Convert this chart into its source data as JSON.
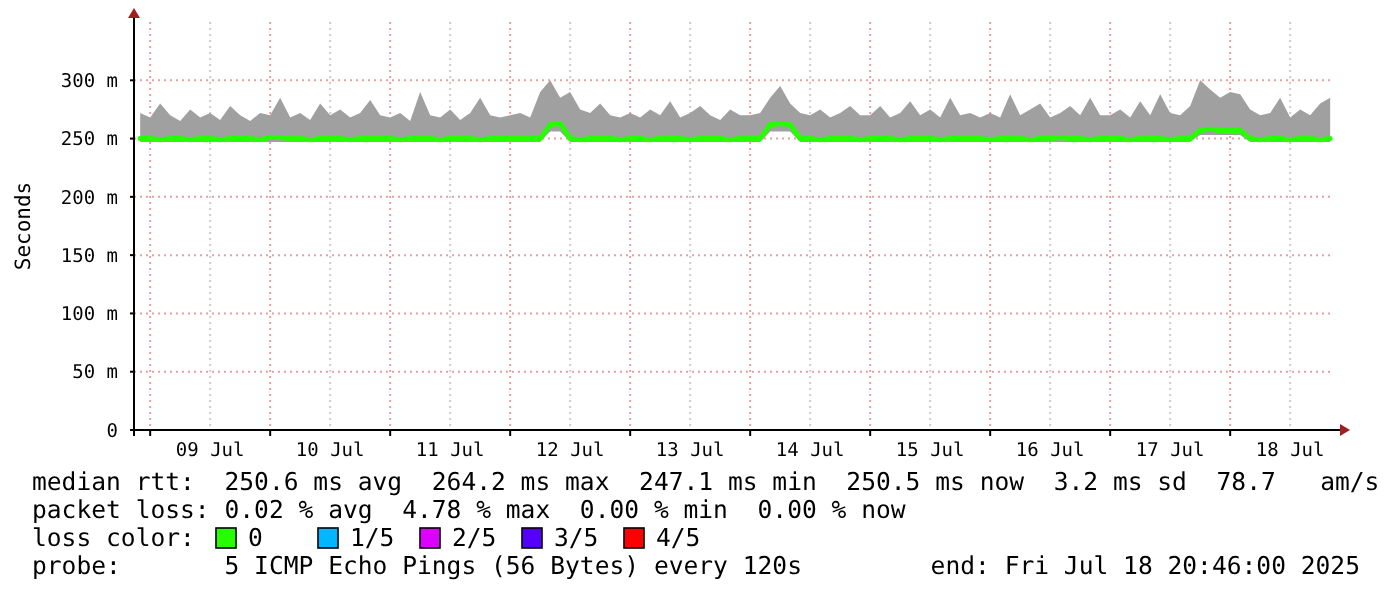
{
  "chart_data": {
    "type": "line",
    "ylabel": "Seconds",
    "legend_title": "loss color:",
    "legend": "bottom",
    "grid": true,
    "marker": "none",
    "line_style": "solid",
    "xlim": [
      "2025-07-08T20:46",
      "2025-07-18T20:46"
    ],
    "xticks": [
      {
        "value": "2025-07-09T00:00",
        "label": null
      },
      {
        "value": "2025-07-09T12:00",
        "label": "09 Jul"
      },
      {
        "value": "2025-07-10T00:00",
        "label": null
      },
      {
        "value": "2025-07-10T12:00",
        "label": "10 Jul"
      },
      {
        "value": "2025-07-11T00:00",
        "label": null
      },
      {
        "value": "2025-07-11T12:00",
        "label": "11 Jul"
      },
      {
        "value": "2025-07-12T00:00",
        "label": null
      },
      {
        "value": "2025-07-12T12:00",
        "label": "12 Jul"
      },
      {
        "value": "2025-07-13T00:00",
        "label": null
      },
      {
        "value": "2025-07-13T12:00",
        "label": "13 Jul"
      },
      {
        "value": "2025-07-14T00:00",
        "label": null
      },
      {
        "value": "2025-07-14T12:00",
        "label": "14 Jul"
      },
      {
        "value": "2025-07-15T00:00",
        "label": null
      },
      {
        "value": "2025-07-15T12:00",
        "label": "15 Jul"
      },
      {
        "value": "2025-07-16T00:00",
        "label": null
      },
      {
        "value": "2025-07-16T12:00",
        "label": "16 Jul"
      },
      {
        "value": "2025-07-17T00:00",
        "label": null
      },
      {
        "value": "2025-07-17T12:00",
        "label": "17 Jul"
      },
      {
        "value": "2025-07-18T00:00",
        "label": null
      },
      {
        "value": "2025-07-18T12:00",
        "label": "18 Jul"
      }
    ],
    "ylim": [
      0,
      350
    ],
    "yticks": [
      0,
      {
        "value": 50,
        "label": "50 m"
      },
      {
        "value": 100,
        "label": "100 m"
      },
      {
        "value": 150,
        "label": "150 m"
      },
      {
        "value": 200,
        "label": "200 m"
      },
      {
        "value": 250,
        "label": "250 m"
      },
      {
        "value": 300,
        "label": "300 m"
      }
    ],
    "x": [
      "2025-07-08T22:00",
      "2025-07-09T00:00",
      "2025-07-09T02:00",
      "2025-07-09T04:00",
      "2025-07-09T06:00",
      "2025-07-09T08:00",
      "2025-07-09T10:00",
      "2025-07-09T12:00",
      "2025-07-09T14:00",
      "2025-07-09T16:00",
      "2025-07-09T18:00",
      "2025-07-09T20:00",
      "2025-07-09T22:00",
      "2025-07-10T00:00",
      "2025-07-10T02:00",
      "2025-07-10T04:00",
      "2025-07-10T06:00",
      "2025-07-10T08:00",
      "2025-07-10T10:00",
      "2025-07-10T12:00",
      "2025-07-10T14:00",
      "2025-07-10T16:00",
      "2025-07-10T18:00",
      "2025-07-10T20:00",
      "2025-07-10T22:00",
      "2025-07-11T00:00",
      "2025-07-11T02:00",
      "2025-07-11T04:00",
      "2025-07-11T06:00",
      "2025-07-11T08:00",
      "2025-07-11T10:00",
      "2025-07-11T12:00",
      "2025-07-11T14:00",
      "2025-07-11T16:00",
      "2025-07-11T18:00",
      "2025-07-11T20:00",
      "2025-07-11T22:00",
      "2025-07-12T00:00",
      "2025-07-12T02:00",
      "2025-07-12T04:00",
      "2025-07-12T06:00",
      "2025-07-12T08:00",
      "2025-07-12T10:00",
      "2025-07-12T12:00",
      "2025-07-12T14:00",
      "2025-07-12T16:00",
      "2025-07-12T18:00",
      "2025-07-12T20:00",
      "2025-07-12T22:00",
      "2025-07-13T00:00",
      "2025-07-13T02:00",
      "2025-07-13T04:00",
      "2025-07-13T06:00",
      "2025-07-13T08:00",
      "2025-07-13T10:00",
      "2025-07-13T12:00",
      "2025-07-13T14:00",
      "2025-07-13T16:00",
      "2025-07-13T18:00",
      "2025-07-13T20:00",
      "2025-07-13T22:00",
      "2025-07-14T00:00",
      "2025-07-14T02:00",
      "2025-07-14T04:00",
      "2025-07-14T06:00",
      "2025-07-14T08:00",
      "2025-07-14T10:00",
      "2025-07-14T12:00",
      "2025-07-14T14:00",
      "2025-07-14T16:00",
      "2025-07-14T18:00",
      "2025-07-14T20:00",
      "2025-07-14T22:00",
      "2025-07-15T00:00",
      "2025-07-15T02:00",
      "2025-07-15T04:00",
      "2025-07-15T06:00",
      "2025-07-15T08:00",
      "2025-07-15T10:00",
      "2025-07-15T12:00",
      "2025-07-15T14:00",
      "2025-07-15T16:00",
      "2025-07-15T18:00",
      "2025-07-15T20:00",
      "2025-07-15T22:00",
      "2025-07-16T00:00",
      "2025-07-16T02:00",
      "2025-07-16T04:00",
      "2025-07-16T06:00",
      "2025-07-16T08:00",
      "2025-07-16T10:00",
      "2025-07-16T12:00",
      "2025-07-16T14:00",
      "2025-07-16T16:00",
      "2025-07-16T18:00",
      "2025-07-16T20:00",
      "2025-07-16T22:00",
      "2025-07-17T00:00",
      "2025-07-17T02:00",
      "2025-07-17T04:00",
      "2025-07-17T06:00",
      "2025-07-17T08:00",
      "2025-07-17T10:00",
      "2025-07-17T12:00",
      "2025-07-17T14:00",
      "2025-07-17T16:00",
      "2025-07-17T18:00",
      "2025-07-17T20:00",
      "2025-07-17T22:00",
      "2025-07-18T00:00",
      "2025-07-18T02:00",
      "2025-07-18T04:00",
      "2025-07-18T06:00",
      "2025-07-18T08:00",
      "2025-07-18T10:00",
      "2025-07-18T12:00",
      "2025-07-18T14:00",
      "2025-07-18T16:00",
      "2025-07-18T18:00",
      "2025-07-18T20:00"
    ],
    "series": [
      {
        "name": "0",
        "color": "#26ff00",
        "values": [
          250,
          250,
          249,
          250,
          250,
          249,
          250,
          250,
          249,
          250,
          250,
          250,
          249,
          251,
          251,
          250,
          250,
          249,
          250,
          250,
          250,
          249,
          250,
          250,
          250,
          250,
          249,
          250,
          250,
          250,
          249,
          250,
          250,
          250,
          249,
          250,
          250,
          250,
          250,
          250,
          250,
          262,
          263,
          250,
          249,
          250,
          250,
          250,
          249,
          250,
          250,
          249,
          250,
          250,
          250,
          249,
          250,
          250,
          250,
          249,
          250,
          250,
          250,
          262,
          263,
          262,
          250,
          250,
          249,
          250,
          250,
          250,
          249,
          250,
          250,
          250,
          249,
          250,
          250,
          250,
          249,
          250,
          250,
          250,
          250,
          249,
          250,
          250,
          250,
          249,
          250,
          250,
          251,
          250,
          250,
          249,
          250,
          250,
          250,
          249,
          250,
          250,
          250,
          249,
          250,
          250,
          257,
          258,
          257,
          257,
          257,
          250,
          249,
          250,
          250,
          249,
          250,
          250,
          249,
          250
        ],
        "lower": [
          247,
          247,
          247,
          247,
          247,
          247,
          247,
          247,
          247,
          247,
          247,
          247,
          247,
          247,
          247,
          247,
          247,
          247,
          247,
          247,
          247,
          247,
          247,
          247,
          247,
          247,
          247,
          247,
          247,
          247,
          247,
          247,
          247,
          247,
          247,
          247,
          247,
          247,
          247,
          247,
          247,
          256,
          256,
          247,
          247,
          247,
          247,
          247,
          247,
          247,
          247,
          247,
          247,
          247,
          247,
          247,
          247,
          247,
          247,
          247,
          247,
          247,
          247,
          256,
          256,
          256,
          247,
          247,
          247,
          247,
          247,
          247,
          247,
          247,
          247,
          247,
          247,
          247,
          247,
          247,
          247,
          247,
          247,
          247,
          247,
          247,
          247,
          247,
          247,
          247,
          247,
          247,
          247,
          247,
          247,
          247,
          247,
          247,
          247,
          247,
          247,
          247,
          247,
          247,
          247,
          247,
          253,
          253,
          253,
          253,
          253,
          247,
          247,
          247,
          247,
          247,
          247,
          247,
          247,
          247
        ],
        "upper": [
          272,
          268,
          280,
          270,
          265,
          275,
          268,
          272,
          266,
          278,
          270,
          265,
          272,
          270,
          285,
          268,
          272,
          266,
          280,
          270,
          275,
          268,
          272,
          283,
          270,
          268,
          272,
          265,
          290,
          270,
          268,
          275,
          266,
          272,
          285,
          270,
          268,
          270,
          272,
          268,
          290,
          300,
          285,
          290,
          275,
          272,
          280,
          270,
          268,
          272,
          268,
          275,
          270,
          282,
          268,
          272,
          278,
          270,
          266,
          275,
          270,
          270,
          272,
          285,
          295,
          280,
          272,
          270,
          275,
          268,
          272,
          278,
          270,
          270,
          278,
          268,
          272,
          282,
          270,
          275,
          268,
          285,
          270,
          272,
          268,
          272,
          268,
          288,
          270,
          275,
          280,
          268,
          272,
          278,
          270,
          285,
          270,
          270,
          275,
          268,
          282,
          270,
          288,
          272,
          270,
          278,
          300,
          292,
          285,
          290,
          288,
          275,
          270,
          272,
          285,
          268,
          275,
          270,
          280,
          285
        ]
      },
      {
        "name": "1/5",
        "color": "#00b8ff",
        "values": [
          null,
          null,
          null,
          null,
          null,
          null,
          null,
          null,
          null,
          null,
          null,
          null,
          null,
          null,
          null,
          null,
          null,
          null,
          null,
          null,
          null,
          null,
          null,
          null,
          null,
          null,
          null,
          null,
          null,
          null,
          null,
          null,
          null,
          null,
          null,
          null,
          null,
          null,
          null,
          null,
          null,
          null,
          null,
          null,
          null,
          null,
          null,
          null,
          null,
          null,
          null,
          null,
          null,
          null,
          null,
          null,
          null,
          null,
          null,
          null,
          null,
          null,
          null,
          null,
          null,
          null,
          null,
          null,
          null,
          null,
          null,
          null,
          null,
          null,
          null,
          null,
          null,
          null,
          null,
          null,
          null,
          null,
          null,
          null,
          null,
          null,
          null,
          null,
          null,
          null,
          null,
          null,
          null,
          null,
          null,
          null,
          null,
          null,
          null,
          null,
          null,
          null,
          null,
          null,
          null,
          null,
          null,
          null,
          null,
          null,
          null,
          null,
          null,
          null,
          null,
          null,
          null,
          null,
          null,
          null
        ]
      },
      {
        "name": "2/5",
        "color": "#dd00ff",
        "values": [
          null,
          null,
          null,
          null,
          null,
          null,
          null,
          null,
          null,
          null,
          null,
          null,
          null,
          null,
          null,
          null,
          null,
          null,
          null,
          null,
          null,
          null,
          null,
          null,
          null,
          null,
          null,
          null,
          null,
          null,
          null,
          null,
          null,
          null,
          null,
          null,
          null,
          null,
          null,
          null,
          null,
          null,
          null,
          null,
          null,
          null,
          null,
          null,
          null,
          null,
          null,
          null,
          null,
          null,
          null,
          null,
          null,
          null,
          null,
          null,
          null,
          null,
          null,
          null,
          null,
          null,
          null,
          null,
          null,
          null,
          null,
          null,
          null,
          null,
          null,
          null,
          null,
          null,
          null,
          null,
          null,
          null,
          null,
          null,
          null,
          null,
          null,
          null,
          null,
          null,
          null,
          null,
          null,
          null,
          null,
          null,
          null,
          null,
          null,
          null,
          null,
          null,
          null,
          null,
          null,
          null,
          null,
          null,
          null,
          null,
          null,
          null,
          null,
          null,
          null,
          null,
          null,
          null,
          null,
          null
        ]
      },
      {
        "name": "3/5",
        "color": "#5500ff",
        "values": [
          null,
          null,
          null,
          null,
          null,
          null,
          null,
          null,
          null,
          null,
          null,
          null,
          null,
          null,
          null,
          null,
          null,
          null,
          null,
          null,
          null,
          null,
          null,
          null,
          null,
          null,
          null,
          null,
          null,
          null,
          null,
          null,
          null,
          null,
          null,
          null,
          null,
          null,
          null,
          null,
          null,
          null,
          null,
          null,
          null,
          null,
          null,
          null,
          null,
          null,
          null,
          null,
          null,
          null,
          null,
          null,
          null,
          null,
          null,
          null,
          null,
          null,
          null,
          null,
          null,
          null,
          null,
          null,
          null,
          null,
          null,
          null,
          null,
          null,
          null,
          null,
          null,
          null,
          null,
          null,
          null,
          null,
          null,
          null,
          null,
          null,
          null,
          null,
          null,
          null,
          null,
          null,
          null,
          null,
          null,
          null,
          null,
          null,
          null,
          null,
          null,
          null,
          null,
          null,
          null,
          null,
          null,
          null,
          null,
          null,
          null,
          null,
          null,
          null,
          null,
          null,
          null,
          null,
          null,
          null
        ]
      },
      {
        "name": "4/5",
        "color": "#ff0000",
        "values": [
          null,
          null,
          null,
          null,
          null,
          null,
          null,
          null,
          null,
          null,
          null,
          null,
          null,
          null,
          null,
          null,
          null,
          null,
          null,
          null,
          null,
          null,
          null,
          null,
          null,
          null,
          null,
          null,
          null,
          null,
          null,
          null,
          null,
          null,
          null,
          null,
          null,
          null,
          null,
          null,
          null,
          null,
          null,
          null,
          null,
          null,
          null,
          null,
          null,
          null,
          null,
          null,
          null,
          null,
          null,
          null,
          null,
          null,
          null,
          null,
          null,
          null,
          null,
          null,
          null,
          null,
          null,
          null,
          null,
          null,
          null,
          null,
          null,
          null,
          null,
          null,
          null,
          null,
          null,
          null,
          null,
          null,
          null,
          null,
          null,
          null,
          null,
          null,
          null,
          null,
          null,
          null,
          null,
          null,
          null,
          null,
          null,
          null,
          null,
          null,
          null,
          null,
          null,
          null,
          null,
          null,
          null,
          null,
          null,
          null,
          null,
          null,
          null,
          null,
          null,
          null,
          null,
          null,
          null,
          null
        ]
      }
    ],
    "annotations": [
      "median rtt:  250.6 ms avg  264.2 ms max  247.1 ms min  250.5 ms now  3.2 ms sd  78.7   am/s",
      "packet loss: 0.02 % avg  4.78 % max  0.00 % min  0.00 % now",
      "probe:       5 ICMP Echo Pings (56 Bytes) every 120s",
      "end: Fri Jul 18 20:46:00 2025"
    ]
  }
}
